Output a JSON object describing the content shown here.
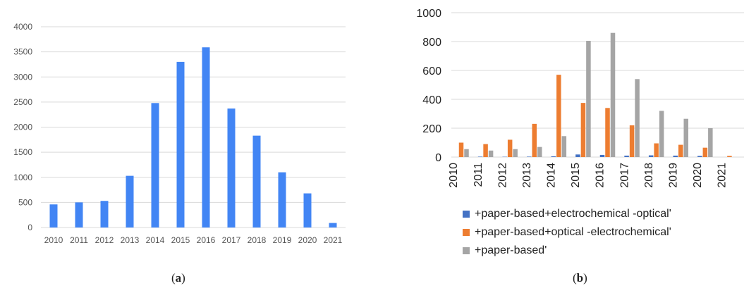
{
  "chart_data": [
    {
      "type": "bar",
      "panel": "(a)",
      "categories": [
        "2010",
        "2011",
        "2012",
        "2013",
        "2014",
        "2015",
        "2016",
        "2017",
        "2018",
        "2019",
        "2020",
        "2021"
      ],
      "values": [
        460,
        500,
        530,
        1030,
        2480,
        3300,
        3590,
        2370,
        1830,
        1100,
        680,
        90
      ],
      "ylim": [
        0,
        4000
      ],
      "yticks": [
        0,
        500,
        1000,
        1500,
        2000,
        2500,
        3000,
        3500,
        4000
      ],
      "grid": true,
      "color": "#4285f4"
    },
    {
      "type": "bar",
      "panel": "(b)",
      "categories": [
        "2010",
        "2011",
        "2012",
        "2013",
        "2014",
        "2015",
        "2016",
        "2017",
        "2018",
        "2019",
        "2020",
        "2021"
      ],
      "series": [
        {
          "name": "+paper-based+electrochemical -optical'",
          "color": "#4472c4",
          "values": [
            0,
            3,
            2,
            3,
            5,
            18,
            15,
            10,
            12,
            10,
            8,
            0
          ]
        },
        {
          "name": "+paper-based+optical -electrochemical'",
          "color": "#ed7d31",
          "values": [
            100,
            90,
            120,
            230,
            570,
            375,
            340,
            220,
            95,
            85,
            65,
            8
          ]
        },
        {
          "name": "+paper-based'",
          "color": "#a5a5a5",
          "values": [
            55,
            45,
            55,
            70,
            145,
            805,
            860,
            540,
            320,
            265,
            200,
            0
          ]
        }
      ],
      "ylim": [
        0,
        1000
      ],
      "yticks": [
        0,
        200,
        400,
        600,
        800,
        1000
      ],
      "grid": true,
      "legend_position": "bottom"
    }
  ],
  "labels": {
    "a": {
      "open": "(",
      "letter": "a",
      "close": ")"
    },
    "b": {
      "open": "(",
      "letter": "b",
      "close": ")"
    }
  }
}
